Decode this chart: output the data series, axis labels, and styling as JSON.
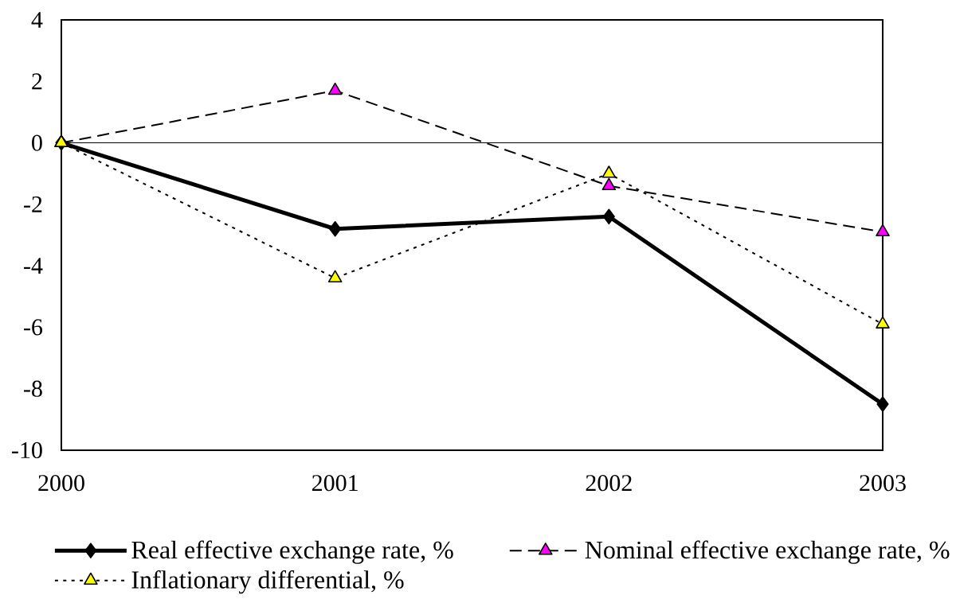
{
  "chart_data": {
    "type": "line",
    "x": [
      2000,
      2001,
      2002,
      2003
    ],
    "series": [
      {
        "name": "Real effective exchange rate, %",
        "color": "#000000",
        "values": [
          0,
          -2.8,
          -2.4,
          -8.5
        ],
        "marker": "diamond",
        "line_style": "solid"
      },
      {
        "name": "Nominal effective exchange rate, %",
        "color": "#ff00ff",
        "values": [
          0,
          1.7,
          -1.4,
          -2.9
        ],
        "marker": "triangle",
        "line_style": "dashed"
      },
      {
        "name": "Inflationary differential, %",
        "color": "#ffff00",
        "values": [
          0,
          -4.4,
          -1.0,
          -5.9
        ],
        "marker": "triangle",
        "line_style": "dotted"
      }
    ],
    "xlim": [
      2000,
      2003
    ],
    "xticks": [
      2000,
      2001,
      2002,
      2003
    ],
    "ylim": [
      -10,
      4
    ],
    "yticks": [
      -10,
      -8,
      -6,
      -4,
      -2,
      0,
      2,
      4
    ],
    "ref_lines": [
      {
        "axis": "y",
        "value": 0
      }
    ],
    "legend": "bottom"
  }
}
